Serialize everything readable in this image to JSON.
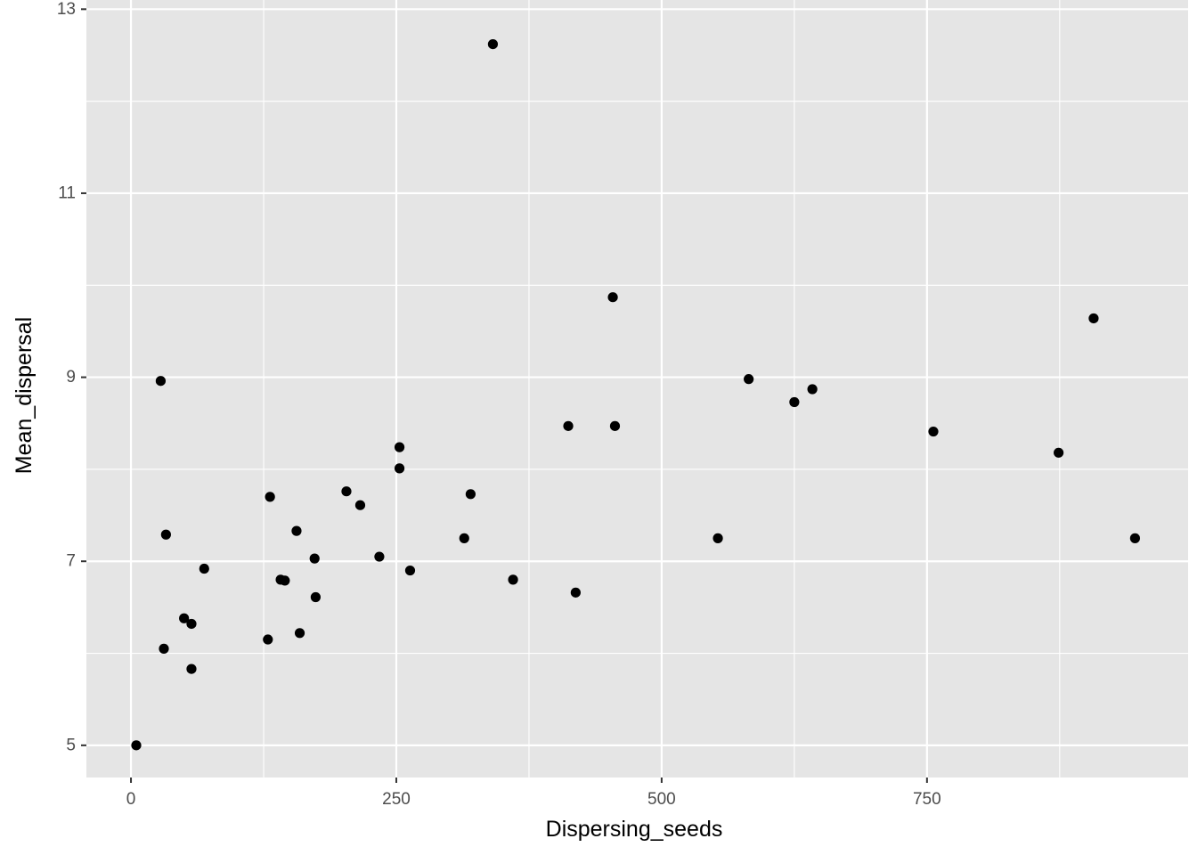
{
  "chart_data": {
    "type": "scatter",
    "title": "",
    "xlabel": "Dispersing_seeds",
    "ylabel": "Mean_dispersal",
    "xlim": [
      -42,
      996
    ],
    "ylim": [
      4.65,
      13.1
    ],
    "x_ticks": [
      0,
      250,
      500,
      750
    ],
    "x_tick_labels": [
      "0",
      "250",
      "500",
      "750"
    ],
    "y_ticks": [
      5,
      7,
      9,
      11,
      13
    ],
    "y_tick_labels": [
      "5",
      "7",
      "9",
      "11",
      "13"
    ],
    "grid": true,
    "legend": "none",
    "colors": {
      "panel": "#e5e5e5",
      "grid": "#ffffff",
      "point": "#000000",
      "tick_text": "#4d4d4d"
    },
    "points": [
      {
        "x": 5,
        "y": 5.0
      },
      {
        "x": 28,
        "y": 8.96
      },
      {
        "x": 31,
        "y": 6.05
      },
      {
        "x": 33,
        "y": 7.29
      },
      {
        "x": 50,
        "y": 6.38
      },
      {
        "x": 57,
        "y": 5.83
      },
      {
        "x": 57,
        "y": 6.32
      },
      {
        "x": 69,
        "y": 6.92
      },
      {
        "x": 129,
        "y": 6.15
      },
      {
        "x": 131,
        "y": 7.7
      },
      {
        "x": 141,
        "y": 6.8
      },
      {
        "x": 145,
        "y": 6.79
      },
      {
        "x": 156,
        "y": 7.33
      },
      {
        "x": 159,
        "y": 6.22
      },
      {
        "x": 173,
        "y": 7.03
      },
      {
        "x": 174,
        "y": 6.61
      },
      {
        "x": 203,
        "y": 7.76
      },
      {
        "x": 216,
        "y": 7.61
      },
      {
        "x": 234,
        "y": 7.05
      },
      {
        "x": 253,
        "y": 8.24
      },
      {
        "x": 253,
        "y": 8.01
      },
      {
        "x": 263,
        "y": 6.9
      },
      {
        "x": 314,
        "y": 7.25
      },
      {
        "x": 320,
        "y": 7.73
      },
      {
        "x": 341,
        "y": 12.62
      },
      {
        "x": 360,
        "y": 6.8
      },
      {
        "x": 412,
        "y": 8.47
      },
      {
        "x": 419,
        "y": 6.66
      },
      {
        "x": 454,
        "y": 9.87
      },
      {
        "x": 456,
        "y": 8.47
      },
      {
        "x": 553,
        "y": 7.25
      },
      {
        "x": 582,
        "y": 8.98
      },
      {
        "x": 625,
        "y": 8.73
      },
      {
        "x": 642,
        "y": 8.87
      },
      {
        "x": 756,
        "y": 8.41
      },
      {
        "x": 874,
        "y": 8.18
      },
      {
        "x": 907,
        "y": 9.64
      },
      {
        "x": 946,
        "y": 7.25
      }
    ]
  }
}
